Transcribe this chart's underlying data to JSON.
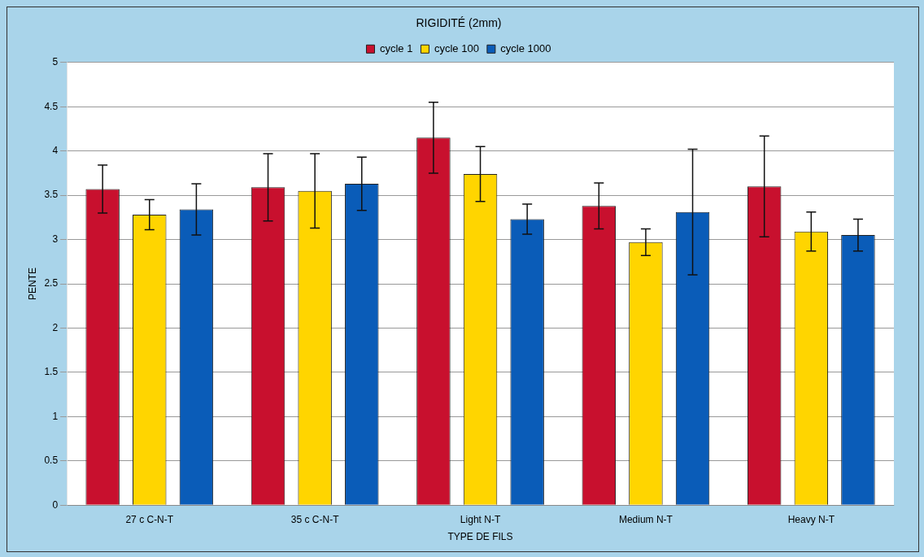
{
  "chart_data": {
    "type": "bar",
    "title": "RIGIDITÉ (2mm)",
    "xlabel": "TYPE DE FILS",
    "ylabel": "PENTE",
    "categories": [
      "27 c C-N-T",
      "35 c C-N-T",
      "Light N-T",
      "Medium N-T",
      "Heavy N-T"
    ],
    "series": [
      {
        "name": "cycle 1",
        "color": "#c8102e",
        "values": [
          3.57,
          3.59,
          4.15,
          3.38,
          3.6
        ],
        "errors": [
          0.27,
          0.38,
          0.4,
          0.26,
          0.57
        ]
      },
      {
        "name": "cycle 100",
        "color": "#ffd500",
        "values": [
          3.28,
          3.55,
          3.74,
          2.97,
          3.09
        ],
        "errors": [
          0.17,
          0.42,
          0.31,
          0.15,
          0.22
        ]
      },
      {
        "name": "cycle 1000",
        "color": "#0a5cb8",
        "values": [
          3.34,
          3.63,
          3.23,
          3.31,
          3.05
        ],
        "errors": [
          0.29,
          0.3,
          0.17,
          0.71,
          0.18
        ]
      }
    ],
    "ylim": [
      0,
      5
    ],
    "yticks": [
      0,
      0.5,
      1,
      1.5,
      2,
      2.5,
      3,
      3.5,
      4,
      4.5,
      5
    ],
    "grid": "y",
    "legend": "top"
  }
}
